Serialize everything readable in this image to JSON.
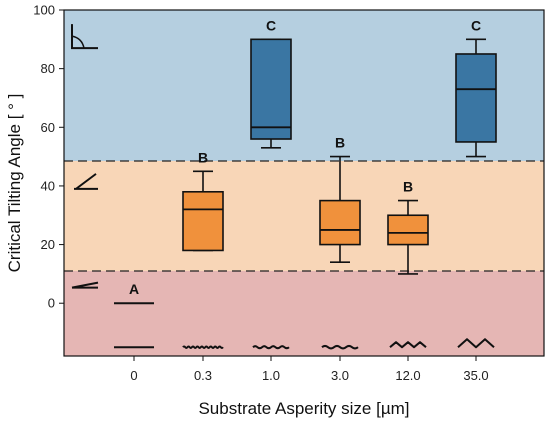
{
  "chart_data": {
    "type": "box",
    "xlabel": "Substrate Asperity size [µm]",
    "ylabel": "Critical Tilting Angle [ ° ]",
    "ylim": [
      -18,
      100
    ],
    "yticks": [
      0,
      20,
      40,
      60,
      80,
      100
    ],
    "categories": [
      "0",
      "0.3",
      "1.0",
      "3.0",
      "12.0",
      "35.0"
    ],
    "regions": [
      {
        "from": -18,
        "to": 11,
        "color": "#e5b6b4"
      },
      {
        "from": 11,
        "to": 48.5,
        "color": "#f8d6b7"
      },
      {
        "from": 48.5,
        "to": 100,
        "color": "#b5cfe0"
      }
    ],
    "thresholds": [
      11,
      48.5
    ],
    "boxes": [
      {
        "category": "0",
        "letter": "A",
        "flat_value": 0
      },
      {
        "category": "0.3",
        "letter": "B",
        "whisker_low": 18,
        "q1": 18,
        "median": 32,
        "q3": 38,
        "whisker_high": 45,
        "color": "#f0913c"
      },
      {
        "category": "1.0",
        "letter": "C",
        "whisker_low": 53,
        "q1": 56,
        "median": 60,
        "q3": 90,
        "whisker_high": 90,
        "color": "#3a76a3"
      },
      {
        "category": "3.0",
        "letter": "B",
        "whisker_low": 14,
        "q1": 20,
        "median": 25,
        "q3": 35,
        "whisker_high": 50,
        "color": "#f0913c"
      },
      {
        "category": "12.0",
        "letter": "B",
        "whisker_low": 10,
        "q1": 20,
        "median": 24,
        "q3": 30,
        "whisker_high": 35,
        "color": "#f0913c"
      },
      {
        "category": "35.0",
        "letter": "C",
        "whisker_low": 50,
        "q1": 55,
        "median": 73,
        "q3": 85,
        "whisker_high": 90,
        "color": "#3a76a3"
      }
    ],
    "surface_profiles": [
      "flat",
      "micro-wave",
      "small-wave",
      "wave",
      "zigzag",
      "large-zigzag"
    ],
    "region_icons": [
      "flat-contact-icon",
      "tilted-plane-icon",
      "right-angle-icon"
    ]
  }
}
